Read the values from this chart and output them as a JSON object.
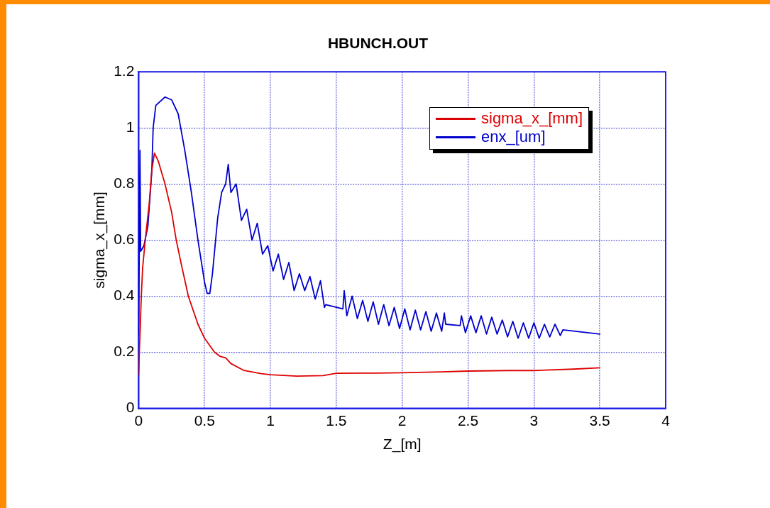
{
  "chart_data": {
    "type": "line",
    "title": "HBUNCH.OUT",
    "xlabel": "Z_[m]",
    "ylabel": "sigma_x_[mm]",
    "xlim": [
      0,
      4
    ],
    "ylim": [
      0,
      1.2
    ],
    "xticks": [
      0,
      0.5,
      1,
      1.5,
      2,
      2.5,
      3,
      3.5,
      4
    ],
    "yticks": [
      0,
      0.2,
      0.4,
      0.6,
      0.8,
      1,
      1.2
    ],
    "grid": true,
    "legend": "top right",
    "series": [
      {
        "name": "sigma_x_[mm]",
        "color": "#dd0000",
        "x": [
          0,
          0.005,
          0.01,
          0.02,
          0.03,
          0.05,
          0.08,
          0.1,
          0.12,
          0.15,
          0.2,
          0.25,
          0.285,
          0.33,
          0.377,
          0.45,
          0.5,
          0.576,
          0.62,
          0.66,
          0.7,
          0.8,
          0.93,
          1.0,
          1.2,
          1.4,
          1.5,
          1.8,
          2.0,
          2.3,
          2.5,
          2.8,
          3.0,
          3.3,
          3.5
        ],
        "values": [
          0.12,
          0.2,
          0.26,
          0.4,
          0.5,
          0.6,
          0.73,
          0.85,
          0.91,
          0.88,
          0.8,
          0.7,
          0.6,
          0.5,
          0.4,
          0.3,
          0.25,
          0.2,
          0.185,
          0.18,
          0.16,
          0.135,
          0.124,
          0.12,
          0.115,
          0.117,
          0.125,
          0.126,
          0.127,
          0.13,
          0.133,
          0.135,
          0.135,
          0.14,
          0.145
        ]
      },
      {
        "name": "enx_[um]",
        "color": "#0000cc",
        "x": [
          0,
          0.005,
          0.01,
          0.015,
          0.04,
          0.07,
          0.09,
          0.1,
          0.11,
          0.13,
          0.2,
          0.25,
          0.3,
          0.35,
          0.4,
          0.45,
          0.5,
          0.52,
          0.54,
          0.56,
          0.6,
          0.63,
          0.66,
          0.68,
          0.7,
          0.74,
          0.78,
          0.82,
          0.86,
          0.9,
          0.94,
          0.98,
          1.02,
          1.06,
          1.1,
          1.14,
          1.18,
          1.22,
          1.26,
          1.3,
          1.34,
          1.38,
          1.41,
          1.42,
          1.55,
          1.56,
          1.58,
          1.62,
          1.66,
          1.7,
          1.74,
          1.78,
          1.82,
          1.86,
          1.9,
          1.94,
          1.98,
          2.02,
          2.06,
          2.1,
          2.14,
          2.18,
          2.22,
          2.26,
          2.3,
          2.32,
          2.33,
          2.44,
          2.45,
          2.48,
          2.52,
          2.56,
          2.6,
          2.64,
          2.68,
          2.72,
          2.76,
          2.8,
          2.84,
          2.88,
          2.92,
          2.96,
          3.0,
          3.04,
          3.08,
          3.12,
          3.16,
          3.2,
          3.22,
          3.5
        ],
        "values": [
          0.26,
          0.6,
          0.92,
          0.56,
          0.58,
          0.65,
          0.78,
          0.85,
          1.0,
          1.08,
          1.11,
          1.1,
          1.05,
          0.92,
          0.77,
          0.6,
          0.45,
          0.41,
          0.41,
          0.48,
          0.68,
          0.77,
          0.8,
          0.87,
          0.77,
          0.8,
          0.67,
          0.71,
          0.6,
          0.66,
          0.55,
          0.58,
          0.49,
          0.55,
          0.46,
          0.52,
          0.42,
          0.48,
          0.42,
          0.47,
          0.39,
          0.455,
          0.36,
          0.37,
          0.355,
          0.42,
          0.33,
          0.4,
          0.32,
          0.385,
          0.31,
          0.38,
          0.3,
          0.37,
          0.295,
          0.36,
          0.285,
          0.355,
          0.28,
          0.35,
          0.28,
          0.345,
          0.275,
          0.34,
          0.275,
          0.34,
          0.3,
          0.295,
          0.33,
          0.27,
          0.33,
          0.27,
          0.33,
          0.265,
          0.325,
          0.265,
          0.315,
          0.255,
          0.31,
          0.25,
          0.305,
          0.25,
          0.305,
          0.25,
          0.3,
          0.255,
          0.3,
          0.26,
          0.28,
          0.265
        ]
      }
    ]
  }
}
